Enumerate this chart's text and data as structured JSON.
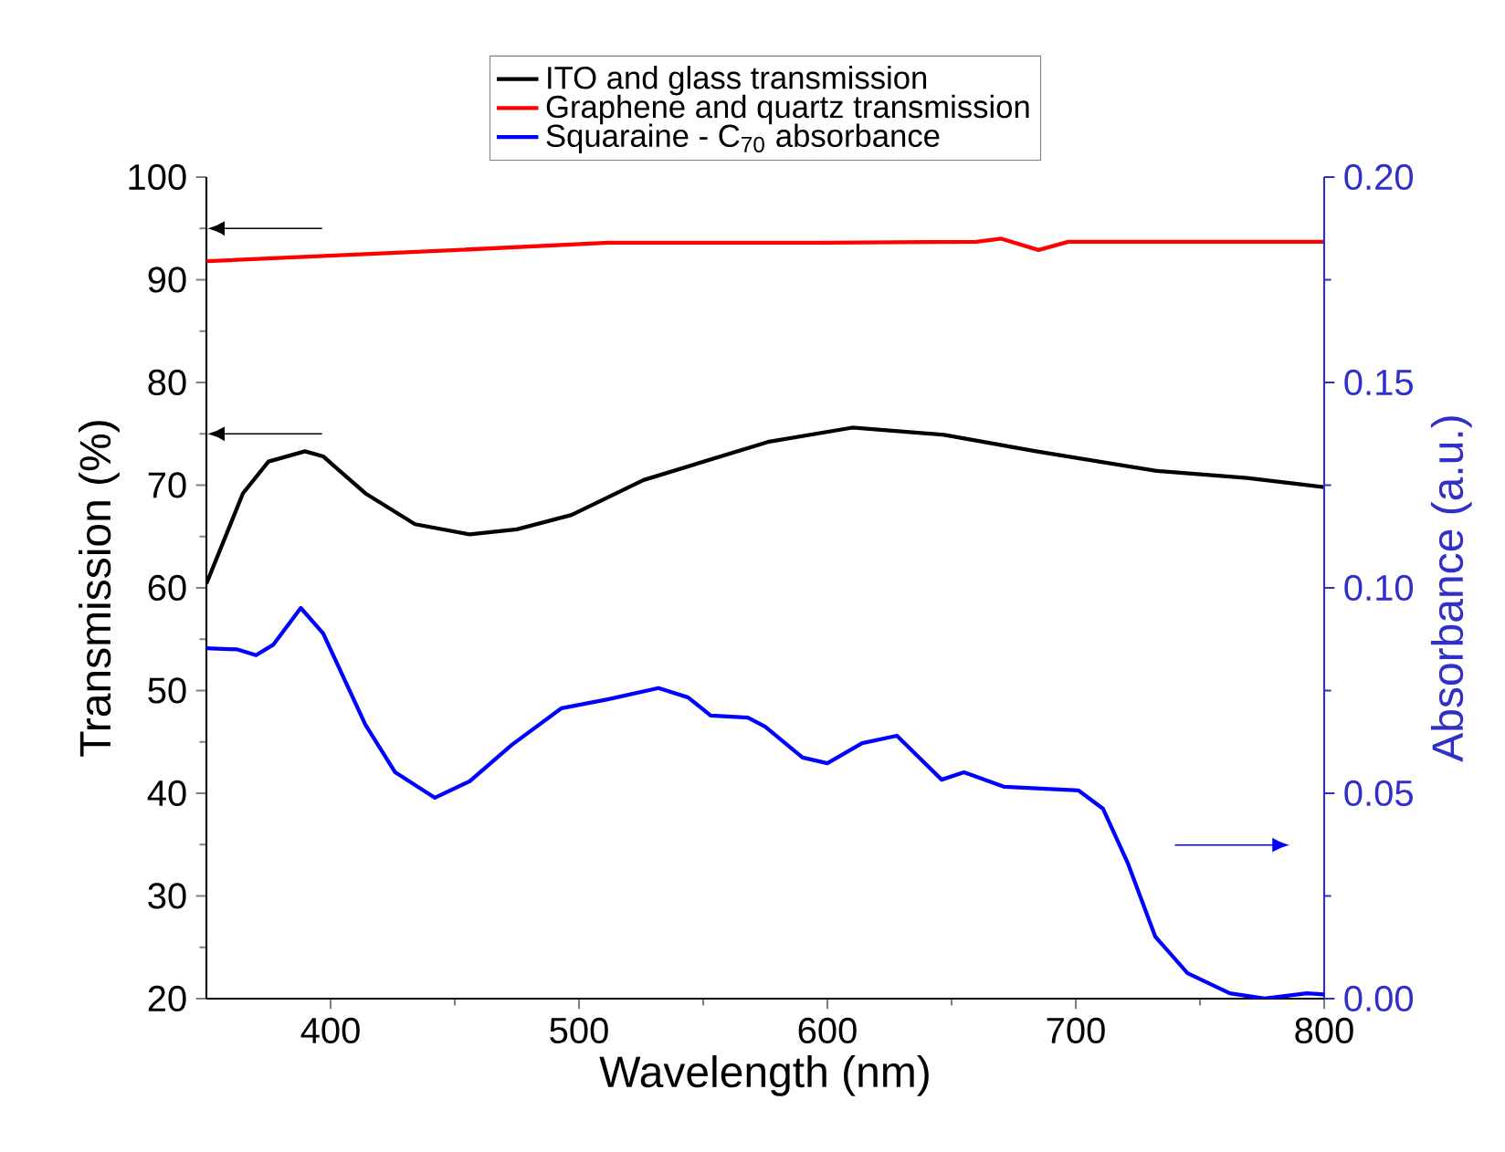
{
  "chart_data": {
    "type": "line",
    "xlabel": "Wavelength (nm)",
    "ylabel": "Transmission (%)",
    "y2label": "Absorbance (a.u.)",
    "xlim": [
      350,
      800
    ],
    "xticks": [
      400,
      500,
      600,
      700,
      800
    ],
    "ylim": [
      20,
      100
    ],
    "yticks": [
      20,
      30,
      40,
      50,
      60,
      70,
      80,
      90,
      100
    ],
    "y2lim": [
      0,
      0.2
    ],
    "y2ticks": [
      {
        "value": 0,
        "label": "0.00"
      },
      {
        "value": 0.05,
        "label": "0.05"
      },
      {
        "value": 0.1,
        "label": "0.10"
      },
      {
        "value": 0.15,
        "label": "0.15"
      },
      {
        "value": 0.2,
        "label": "0.20"
      }
    ],
    "legend": "top",
    "grid": false,
    "marker": "none",
    "line_style": "solid",
    "series": [
      {
        "name": "ITO and glass transmission",
        "color": "#000000",
        "x": [
          350,
          364.7,
          375,
          389.7,
          397,
          414,
          434,
          456,
          475,
          497,
          526,
          576,
          610,
          647,
          684,
          732,
          769,
          800
        ],
        "values": [
          60.4,
          69.2,
          72.3,
          73.3,
          72.8,
          69.2,
          66.2,
          65.2,
          65.7,
          67.1,
          70.5,
          74.2,
          75.6,
          74.9,
          73.3,
          71.4,
          70.7,
          69.8
        ]
      },
      {
        "name": "Graphene and quartz transmission",
        "color": "#ff0000",
        "x": [
          350,
          451,
          512,
          600,
          660,
          670,
          685,
          697,
          800
        ],
        "values": [
          91.8,
          92.9,
          93.6,
          93.6,
          93.7,
          94.0,
          92.9,
          93.7,
          93.7
        ]
      },
      {
        "name": "Squaraine - C$_{70}$ absorbance",
        "color": "#0000ff",
        "axis": "y2",
        "x": [
          350,
          362.5,
          370,
          377,
          388,
          397,
          414,
          426,
          442,
          456,
          473,
          493,
          512,
          532,
          544,
          553,
          568,
          575,
          590,
          600,
          614,
          628,
          646,
          655,
          671,
          701,
          711,
          721,
          732,
          745,
          762,
          776,
          793,
          800
        ],
        "values": [
          0.0853,
          0.085,
          0.0836,
          0.0862,
          0.0951,
          0.0889,
          0.0667,
          0.0551,
          0.0489,
          0.0529,
          0.0618,
          0.0707,
          0.0729,
          0.0756,
          0.0733,
          0.0689,
          0.0684,
          0.0662,
          0.0587,
          0.0573,
          0.0622,
          0.064,
          0.0533,
          0.0551,
          0.0516,
          0.0507,
          0.0462,
          0.0329,
          0.0151,
          0.0062,
          0.0013,
          0,
          0.0013,
          0.001
        ]
      }
    ]
  }
}
